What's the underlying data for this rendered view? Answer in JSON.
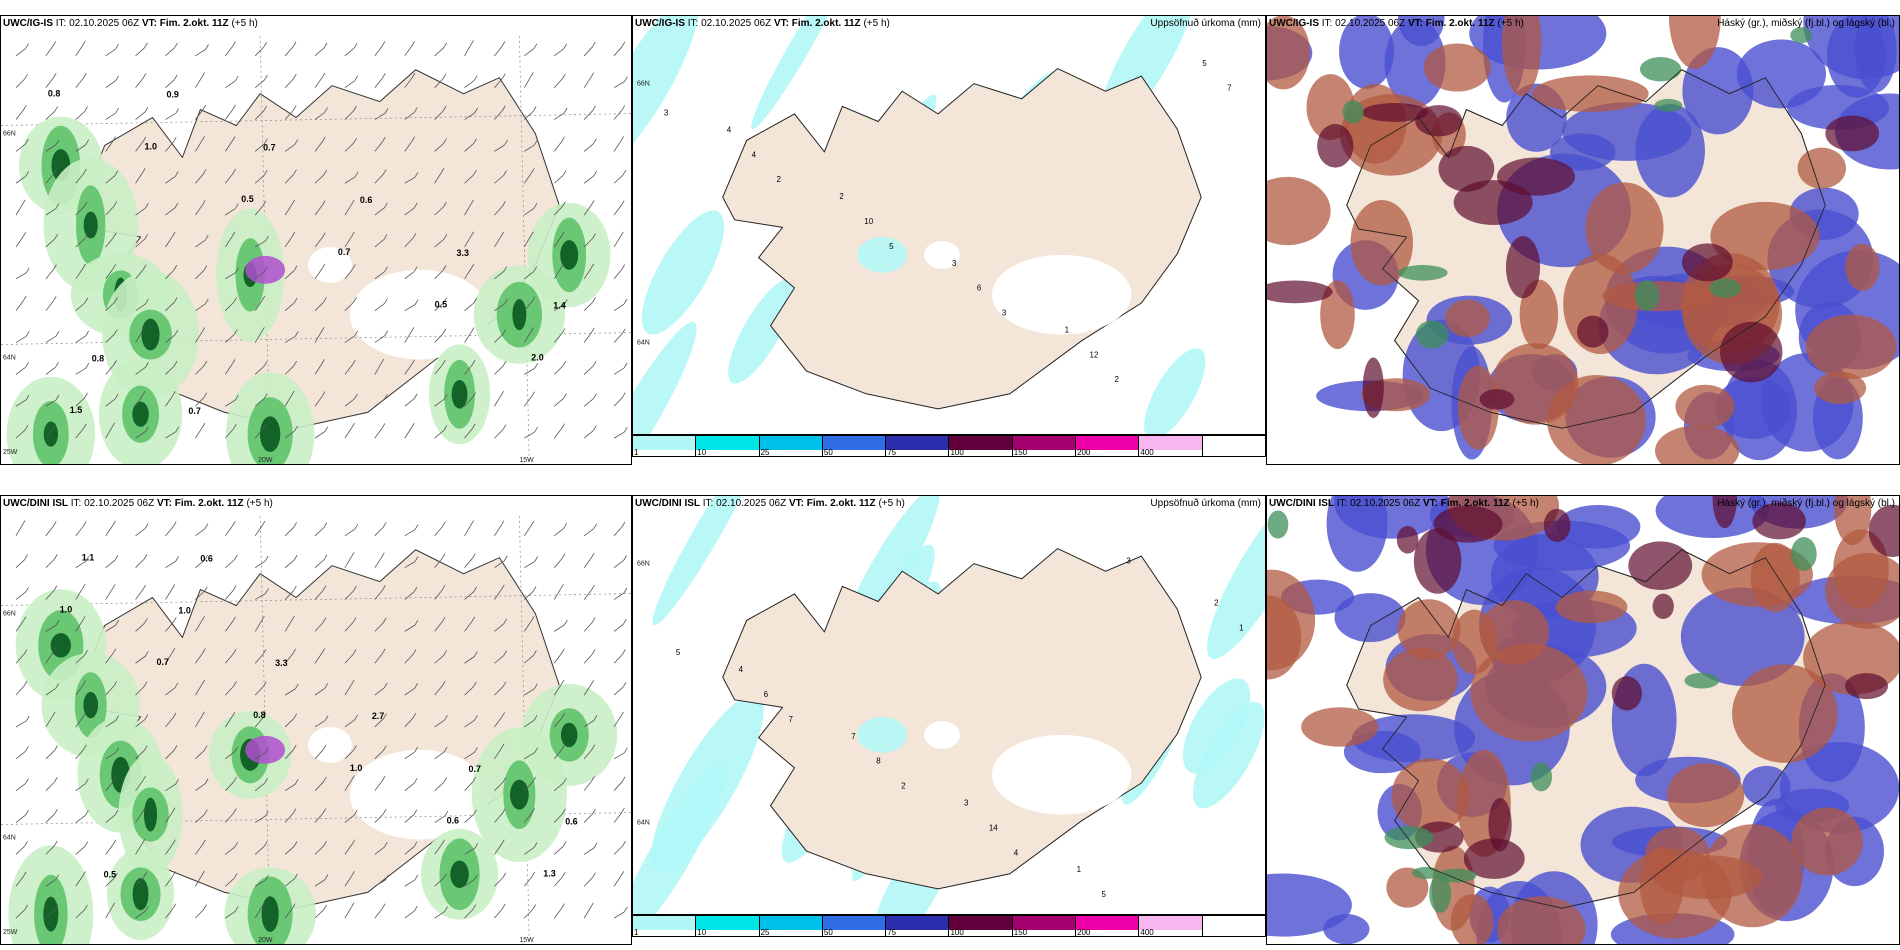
{
  "rows": [
    {
      "left": {
        "model": "UWC/IG-IS",
        "it": "IT: 02.10.2025 06Z",
        "vt": "VT: Fim. 2.okt. 11Z",
        "lead": "(+5 h)",
        "right": ""
      },
      "middle": {
        "model": "UWC/IG-IS",
        "it": "IT: 02.10.2025 06Z",
        "vt": "VT: Fim. 2.okt. 11Z",
        "lead": "(+5 h)",
        "right": "Uppsöfnuð úrkoma (mm)"
      },
      "cloud": {
        "model": "UWC/IG-IS",
        "it": "IT: 02.10.2025 06Z",
        "vt": "VT: Fim. 2.okt. 11Z",
        "lead": "(+5 h)",
        "right": "Háský (gr.), miðský (fj.bl.) og lágský (bl.)"
      }
    },
    {
      "left": {
        "model": "UWC/DINI ISL",
        "it": "IT: 02.10.2025 06Z",
        "vt": "VT: Fim. 2.okt. 11Z",
        "lead": "(+5 h)",
        "right": ""
      },
      "middle": {
        "model": "UWC/DINI ISL",
        "it": "IT: 02.10.2025 06Z",
        "vt": "VT: Fim. 2.okt. 11Z",
        "lead": "(+5 h)",
        "right": "Uppsöfnuð úrkoma (mm)"
      },
      "cloud": {
        "model": "UWC/DINI ISL",
        "it": "IT: 02.10.2025 06Z",
        "vt": "VT: Fim. 2.okt. 11Z",
        "lead": "(+5 h)",
        "right": "Háský (gr.), miðský (fj.bl.) og lágský (bl.)"
      }
    }
  ],
  "map_ticks": {
    "lat_66": "66N",
    "lat_64": "64N",
    "lon_25": "25W",
    "lon_20": "20W",
    "lon_15": "15W"
  },
  "colorbar": {
    "labels": [
      "1",
      "10",
      "25",
      "50",
      "75",
      "100",
      "150",
      "200",
      "400",
      ""
    ],
    "colors": [
      "#b2f7f7",
      "#00e5e5",
      "#00bfe8",
      "#2f6ee6",
      "#2b2fae",
      "#62003e",
      "#a4006e",
      "#f000a8",
      "#f7b6ef",
      "#ffffff"
    ]
  },
  "precip_rate_labels_top": [
    "0.8",
    "1.0",
    "0.5",
    "0.7",
    "0.5",
    "2.0",
    "1.5",
    "0.9",
    "0.7",
    "0.6",
    "3.3",
    "1.4",
    "0.8",
    "0.7"
  ],
  "precip_rate_labels_bottom": [
    "1.0",
    "0.7",
    "0.8",
    "1.0",
    "0.6",
    "1.3",
    "1.1",
    "1.0",
    "3.3",
    "2.7",
    "0.7",
    "0.6",
    "0.5",
    "0.6"
  ],
  "accum_labels_top": [
    "3",
    "2",
    "5",
    "3",
    "2",
    "7",
    "4",
    "10",
    "6",
    "12",
    "5",
    "4",
    "2",
    "3",
    "1"
  ],
  "accum_labels_bottom": [
    "5",
    "7",
    "2",
    "4",
    "3",
    "1",
    "6",
    "8",
    "14",
    "5",
    "2",
    "4",
    "7",
    "3",
    "1"
  ],
  "colors": {
    "land": "#f3e6d8",
    "green_light": "#c9eec4",
    "green_mid": "#5fc36b",
    "green_dark": "#0f5e25",
    "purple": "#b04fd0",
    "cyan": "#b2f7f7",
    "high_cloud": "#3d8f59",
    "mid_cloud": "#b25a42",
    "low_cloud": "#4a4fd0",
    "ice": "#ffffff"
  }
}
